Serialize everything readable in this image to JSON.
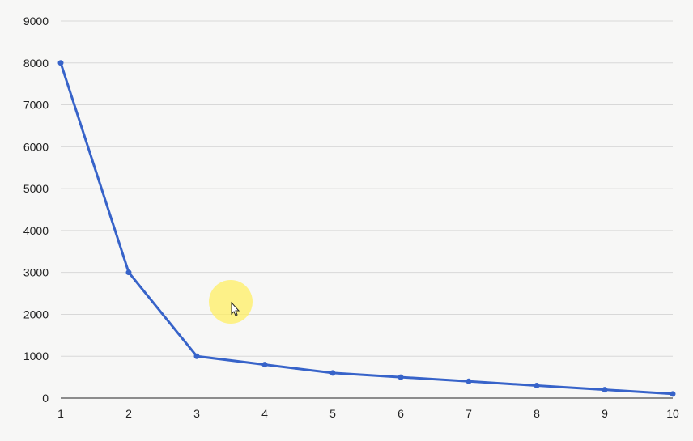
{
  "chart_data": {
    "type": "line",
    "title": "",
    "xlabel": "",
    "ylabel": "",
    "x": [
      1,
      2,
      3,
      4,
      5,
      6,
      7,
      8,
      9,
      10
    ],
    "series": [
      {
        "values": [
          8000,
          3000,
          1000,
          800,
          600,
          500,
          400,
          300,
          200,
          100
        ]
      }
    ],
    "ylim": [
      0,
      9000
    ],
    "yticks": [
      0,
      1000,
      2000,
      3000,
      4000,
      5000,
      6000,
      7000,
      8000,
      9000
    ],
    "xticks": [
      1,
      2,
      3,
      4,
      5,
      6,
      7,
      8,
      9,
      10
    ],
    "grid": true,
    "legend": "none",
    "line_color": "#3763c9"
  },
  "cursor": {
    "icon": "mouse-pointer-icon",
    "highlight_color": "#ffef63"
  }
}
